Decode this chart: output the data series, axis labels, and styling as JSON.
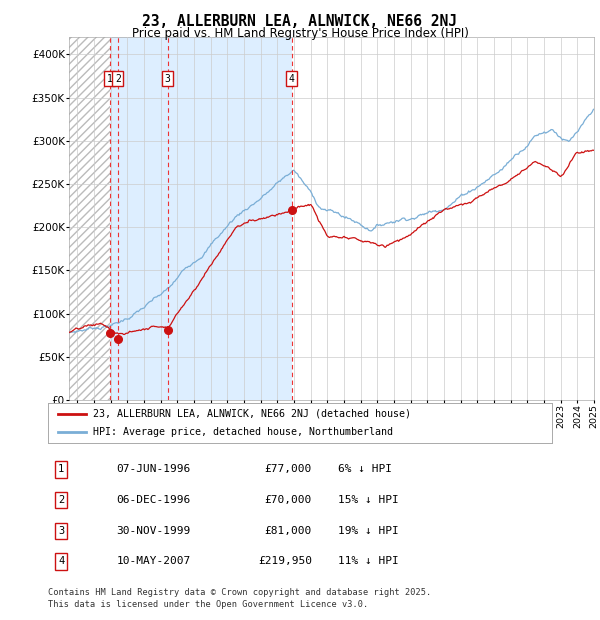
{
  "title": "23, ALLERBURN LEA, ALNWICK, NE66 2NJ",
  "subtitle": "Price paid vs. HM Land Registry's House Price Index (HPI)",
  "legend_red": "23, ALLERBURN LEA, ALNWICK, NE66 2NJ (detached house)",
  "legend_blue": "HPI: Average price, detached house, Northumberland",
  "footer1": "Contains HM Land Registry data © Crown copyright and database right 2025.",
  "footer2": "This data is licensed under the Open Government Licence v3.0.",
  "sales": [
    {
      "num": 1,
      "date": "07-JUN-1996",
      "year": 1996.44,
      "price": 77000,
      "pct": "6% ↓ HPI"
    },
    {
      "num": 2,
      "date": "06-DEC-1996",
      "year": 1996.93,
      "price": 70000,
      "pct": "15% ↓ HPI"
    },
    {
      "num": 3,
      "date": "30-NOV-1999",
      "year": 1999.91,
      "price": 81000,
      "pct": "19% ↓ HPI"
    },
    {
      "num": 4,
      "date": "10-MAY-2007",
      "year": 2007.36,
      "price": 219950,
      "pct": "11% ↓ HPI"
    }
  ],
  "hpi_color": "#7aaed6",
  "red_color": "#cc1111",
  "vline_color": "#ee3333",
  "box_color": "#cc1111",
  "shade_color": "#ddeeff",
  "hatch_color": "#cccccc",
  "grid_color": "#cccccc",
  "ylim": [
    0,
    420000
  ],
  "yticks": [
    0,
    50000,
    100000,
    150000,
    200000,
    250000,
    300000,
    350000,
    400000
  ],
  "ytick_labels": [
    "£0",
    "£50K",
    "£100K",
    "£150K",
    "£200K",
    "£250K",
    "£300K",
    "£350K",
    "£400K"
  ],
  "start_year": 1994.0,
  "end_year": 2025.5
}
